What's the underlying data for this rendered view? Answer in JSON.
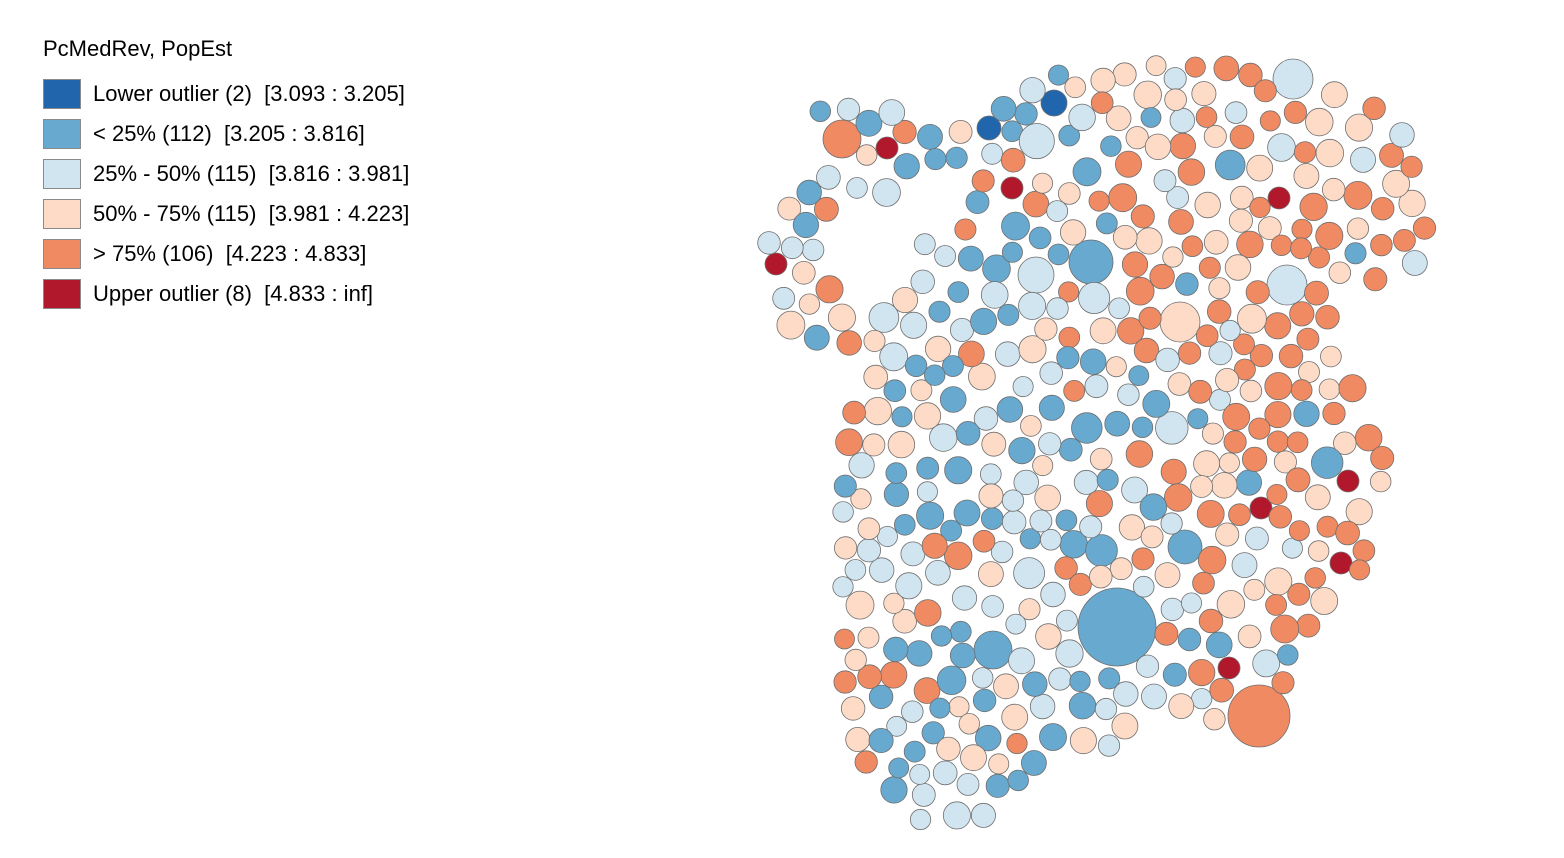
{
  "legend": {
    "title": "PcMedRev, PopEst",
    "items": [
      {
        "label": "Lower outlier (2)  [3.093 : 3.205]",
        "color": "#2166ac",
        "count": 2
      },
      {
        "label": "< 25% (112)  [3.205 : 3.816]",
        "color": "#67a9cf",
        "count": 112
      },
      {
        "label": "25% - 50% (115)  [3.816 : 3.981]",
        "color": "#d1e5f0",
        "count": 115
      },
      {
        "label": "50% - 75% (115)  [3.981 : 4.223]",
        "color": "#fddbc7",
        "count": 115
      },
      {
        "label": "> 75% (106)  [4.223 : 4.833]",
        "color": "#ef8a62",
        "count": 106
      },
      {
        "label": "Upper outlier (8)  [4.833 : inf]",
        "color": "#b2182b",
        "count": 8
      }
    ]
  },
  "map": {
    "type": "cartogram",
    "variable": "PcMedRev",
    "size_variable": "PopEst",
    "total_units": 458
  }
}
